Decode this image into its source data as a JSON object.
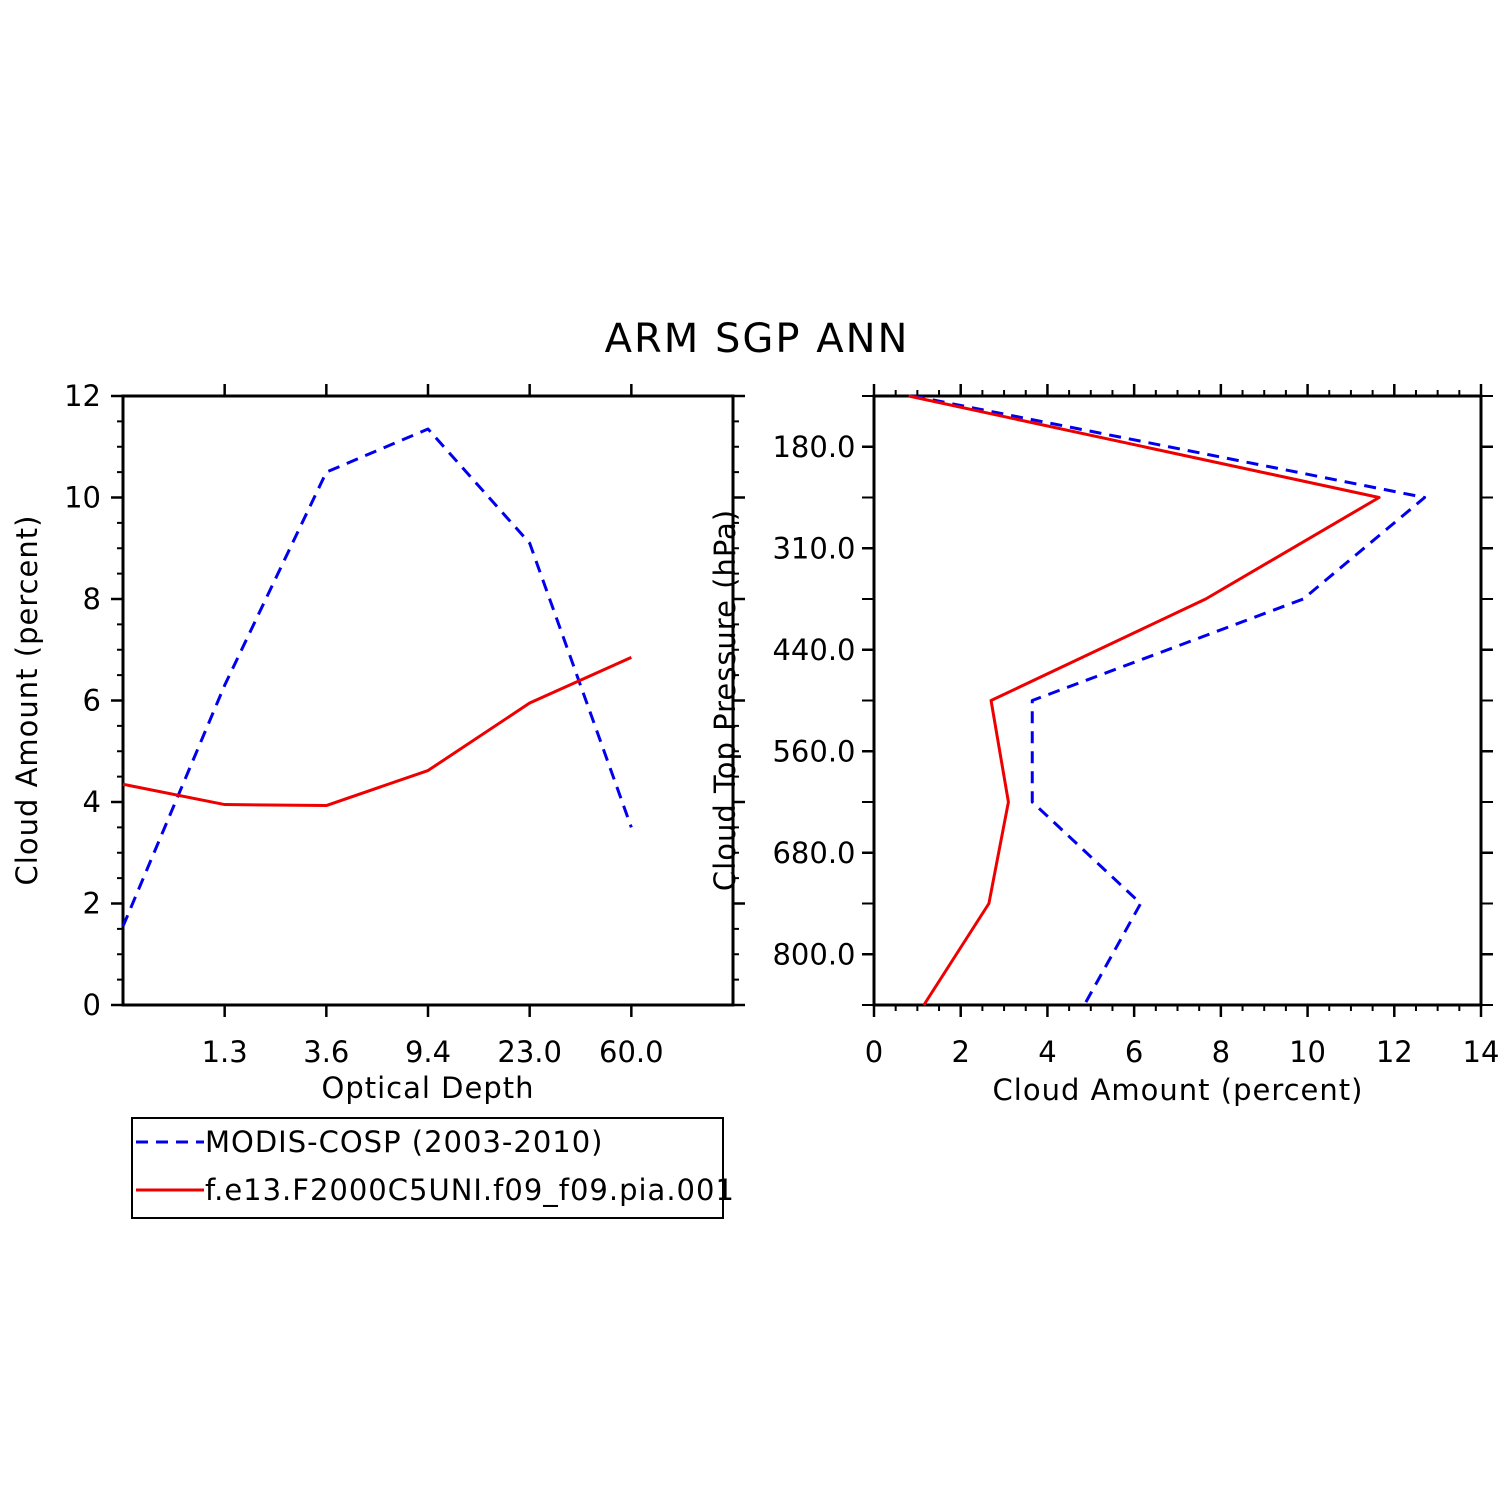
{
  "figure": {
    "title": "ARM SGP ANN"
  },
  "chart_data": [
    {
      "type": "line",
      "xlabel": "Optical Depth",
      "ylabel": "Cloud Amount (percent)",
      "x_tick_labels": [
        "1.3",
        "3.6",
        "9.4",
        "23.0",
        "60.0"
      ],
      "y_ticks": [
        0,
        2,
        4,
        6,
        8,
        10,
        12
      ],
      "ylim": [
        0,
        12
      ],
      "x_bins": 6,
      "series": [
        {
          "name": "MODIS-COSP (2003-2010)",
          "color": "#0000ee",
          "dashed": true,
          "values": [
            1.55,
            6.3,
            10.5,
            11.35,
            9.1,
            3.5
          ]
        },
        {
          "name": "f.e13.F2000C5UNI.f09_f09.pia.001",
          "color": "#ee0000",
          "dashed": false,
          "values": [
            4.35,
            3.95,
            3.93,
            4.62,
            5.95,
            6.85
          ]
        }
      ],
      "legend": {
        "position": "bottom-left",
        "entries": [
          "MODIS-COSP (2003-2010)",
          "f.e13.F2000C5UNI.f09_f09.pia.001"
        ]
      }
    },
    {
      "type": "line",
      "xlabel": "Cloud Amount (percent)",
      "ylabel": "Cloud Top Pressure (hPa)",
      "x_ticks": [
        0,
        2,
        4,
        6,
        8,
        10,
        12,
        14
      ],
      "xlim": [
        0,
        14
      ],
      "y_tick_labels": [
        "180.0",
        "310.0",
        "440.0",
        "560.0",
        "680.0",
        "800.0"
      ],
      "y_bins": 6,
      "orientation": "vertical-profile",
      "series": [
        {
          "name": "MODIS-COSP (2003-2010)",
          "color": "#0000ee",
          "dashed": true,
          "values": [
            0.9,
            12.7,
            9.9,
            3.65,
            3.65,
            6.15,
            4.85
          ]
        },
        {
          "name": "f.e13.F2000C5UNI.f09_f09.pia.001",
          "color": "#ee0000",
          "dashed": false,
          "values": [
            0.8,
            11.65,
            7.65,
            2.7,
            3.1,
            2.65,
            1.15
          ]
        }
      ]
    }
  ]
}
